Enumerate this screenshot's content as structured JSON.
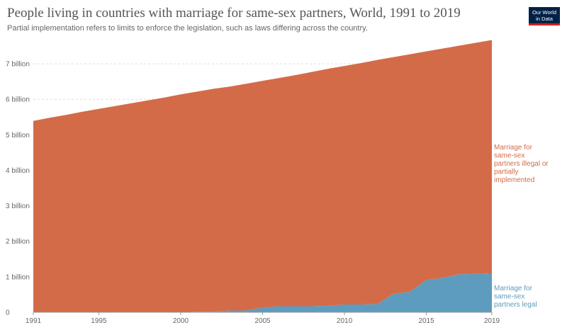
{
  "header": {
    "title": "People living in countries with marriage for same-sex partners, World, 1991 to 2019",
    "subtitle": "Partial implementation refers to limits to enforce the legislation, such as laws differing across the country.",
    "logo_line1": "Our World",
    "logo_line2": "in Data"
  },
  "colors": {
    "illegal": "#d46b48",
    "legal": "#5d9cbe",
    "grid": "#dddddd"
  },
  "chart_data": {
    "type": "area",
    "stacked": true,
    "title": "People living in countries with marriage for same-sex partners, World, 1991 to 2019",
    "subtitle": "Partial implementation refers to limits to enforce the legislation, such as laws differing across the country.",
    "x": [
      1991,
      1992,
      1993,
      1994,
      1995,
      1996,
      1997,
      1998,
      1999,
      2000,
      2001,
      2002,
      2003,
      2004,
      2005,
      2006,
      2007,
      2008,
      2009,
      2010,
      2011,
      2012,
      2013,
      2014,
      2015,
      2016,
      2017,
      2018,
      2019
    ],
    "series": [
      {
        "name": "Marriage for same-sex partners legal",
        "label_lines": [
          "Marriage for",
          "same-sex",
          "partners legal"
        ],
        "color": "#5d9cbe",
        "values": [
          0,
          0,
          0,
          0,
          0,
          0,
          0,
          0,
          0,
          0,
          0.016,
          0.016,
          0.049,
          0.049,
          0.13,
          0.17,
          0.17,
          0.17,
          0.18,
          0.22,
          0.22,
          0.23,
          0.52,
          0.58,
          0.91,
          0.97,
          1.07,
          1.08,
          1.1
        ]
      },
      {
        "name": "Marriage for same-sex partners illegal or partially implemented",
        "label_lines": [
          "Marriage for",
          "same-sex",
          "partners illegal or",
          "partially",
          "implemented"
        ],
        "color": "#d46b48",
        "values": [
          5.39,
          5.48,
          5.56,
          5.65,
          5.73,
          5.81,
          5.89,
          5.97,
          6.05,
          6.14,
          6.2,
          6.28,
          6.31,
          6.39,
          6.39,
          6.43,
          6.51,
          6.6,
          6.68,
          6.72,
          6.8,
          6.88,
          6.67,
          6.69,
          6.44,
          6.46,
          6.44,
          6.51,
          6.57
        ]
      }
    ],
    "x_ticks": [
      "1991",
      "1995",
      "2000",
      "2005",
      "2010",
      "2015",
      "2019"
    ],
    "x_tick_values": [
      1991,
      1995,
      2000,
      2005,
      2010,
      2015,
      2019
    ],
    "y_ticks": [
      "0",
      "1 billion",
      "2 billion",
      "3 billion",
      "4 billion",
      "5 billion",
      "6 billion",
      "7 billion"
    ],
    "y_tick_values": [
      0,
      1,
      2,
      3,
      4,
      5,
      6,
      7
    ],
    "xlim": [
      1991,
      2019
    ],
    "ylim": [
      0,
      7.8
    ],
    "grid": "horizontal"
  }
}
